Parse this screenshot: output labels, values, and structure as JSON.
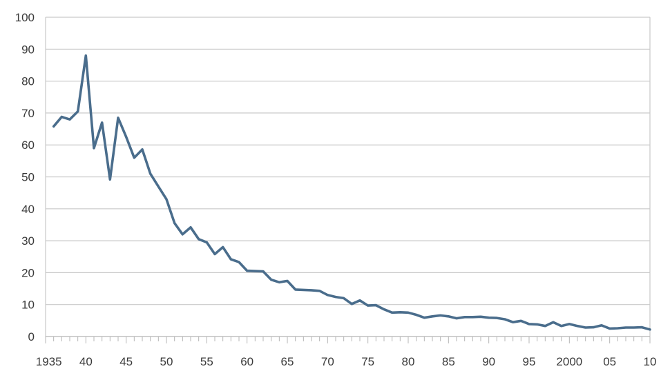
{
  "chart_data": {
    "type": "line",
    "title": "",
    "xlabel": "",
    "ylabel": "",
    "xlim": [
      1936,
      2010
    ],
    "ylim": [
      0,
      100
    ],
    "grid": true,
    "colors": {
      "line": "#4a6d8c",
      "grid": "#c9c9c9",
      "axis": "#b5b5b5"
    },
    "y_ticks": [
      {
        "value": 0,
        "label": "0"
      },
      {
        "value": 10,
        "label": "10"
      },
      {
        "value": 20,
        "label": "20"
      },
      {
        "value": 30,
        "label": "30"
      },
      {
        "value": 40,
        "label": "40"
      },
      {
        "value": 50,
        "label": "50"
      },
      {
        "value": 60,
        "label": "60"
      },
      {
        "value": 70,
        "label": "70"
      },
      {
        "value": 80,
        "label": "80"
      },
      {
        "value": 90,
        "label": "90"
      },
      {
        "value": 100,
        "label": "100"
      }
    ],
    "x_ticks": [
      {
        "value": 1935.4,
        "label": "1935"
      },
      {
        "value": 1940,
        "label": "40"
      },
      {
        "value": 1945,
        "label": "45"
      },
      {
        "value": 1950,
        "label": "50"
      },
      {
        "value": 1955,
        "label": "55"
      },
      {
        "value": 1960,
        "label": "60"
      },
      {
        "value": 1965,
        "label": "65"
      },
      {
        "value": 1970,
        "label": "70"
      },
      {
        "value": 1975,
        "label": "75"
      },
      {
        "value": 1980,
        "label": "80"
      },
      {
        "value": 1985,
        "label": "85"
      },
      {
        "value": 1990,
        "label": "90"
      },
      {
        "value": 1995,
        "label": "95"
      },
      {
        "value": 2000,
        "label": "2000"
      },
      {
        "value": 2005,
        "label": "05"
      },
      {
        "value": 2010,
        "label": "10"
      }
    ],
    "series": [
      {
        "x": [
          1936,
          1937,
          1938,
          1939,
          1940,
          1941,
          1942,
          1943,
          1944,
          1945,
          1946,
          1947,
          1948,
          1949,
          1950,
          1951,
          1952,
          1953,
          1954,
          1955,
          1956,
          1957,
          1958,
          1959,
          1960,
          1961,
          1962,
          1963,
          1964,
          1965,
          1966,
          1967,
          1968,
          1969,
          1970,
          1971,
          1972,
          1973,
          1974,
          1975,
          1976,
          1977,
          1978,
          1979,
          1980,
          1981,
          1982,
          1983,
          1984,
          1985,
          1986,
          1987,
          1988,
          1989,
          1990,
          1991,
          1992,
          1993,
          1994,
          1995,
          1996,
          1997,
          1998,
          1999,
          2000,
          2001,
          2002,
          2003,
          2004,
          2005,
          2006,
          2007,
          2008,
          2009,
          2010
        ],
        "values": [
          65.8,
          68.8,
          68,
          70.5,
          88,
          59,
          67,
          49.2,
          68.5,
          62.5,
          56,
          58.6,
          51,
          47,
          43,
          35.5,
          32,
          34.2,
          30.5,
          29.5,
          25.8,
          28,
          24.2,
          23.3,
          20.6,
          20.5,
          20.4,
          17.8,
          17,
          17.4,
          14.7,
          14.6,
          14.5,
          14.3,
          13,
          12.4,
          12,
          10.2,
          11.3,
          9.7,
          9.8,
          8.5,
          7.5,
          7.6,
          7.5,
          6.8,
          5.9,
          6.3,
          6.6,
          6.3,
          5.7,
          6.1,
          6.1,
          6.2,
          5.9,
          5.8,
          5.4,
          4.5,
          4.9,
          3.9,
          3.8,
          3.3,
          4.5,
          3.3,
          3.9,
          3.3,
          2.8,
          2.9,
          3.5,
          2.5,
          2.6,
          2.8,
          2.8,
          2.9,
          2.2
        ]
      }
    ]
  }
}
